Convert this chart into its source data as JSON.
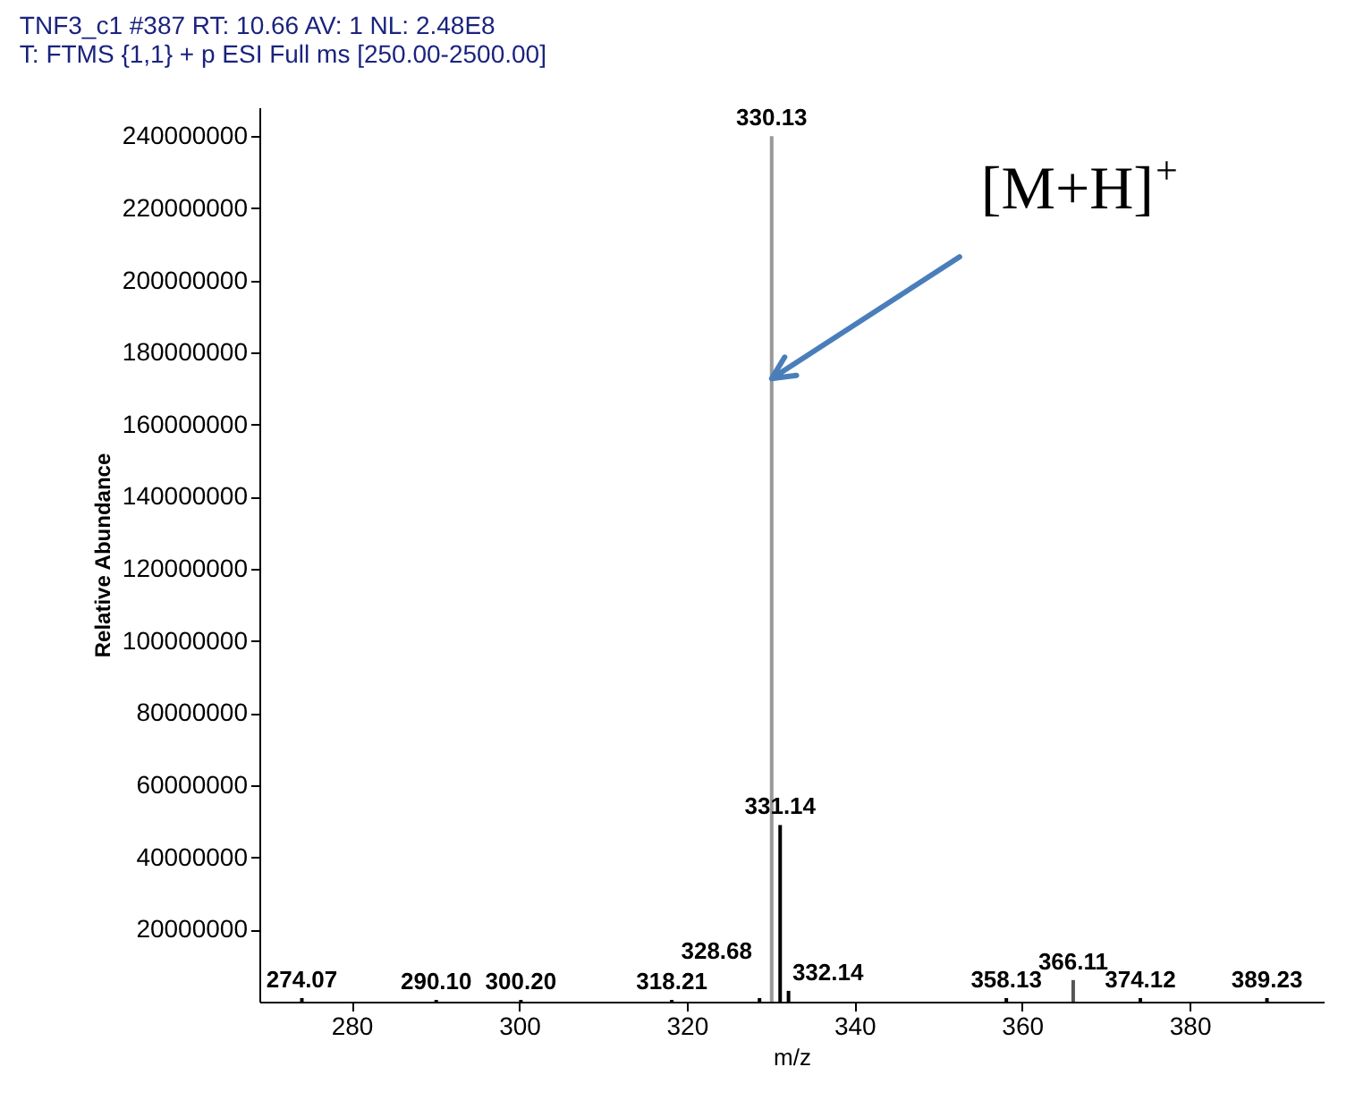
{
  "chart_data": {
    "type": "bar",
    "title": "TNF3_c1 #387   RT: 10.66   AV: 1   NL: 2.48E8",
    "subtitle": "T: FTMS {1,1}  + p ESI Full ms [250.00-2500.00]",
    "xlabel": "m/z",
    "ylabel": "Relative Abundance",
    "x": [
      274.07,
      290.1,
      300.2,
      318.21,
      328.68,
      330.13,
      331.14,
      332.14,
      358.13,
      366.11,
      374.12,
      389.23
    ],
    "values": [
      1000000,
      500000,
      500000,
      500000,
      1000000,
      240000000,
      49000000,
      3000000,
      1000000,
      6000000,
      1000000,
      1000000
    ],
    "colors": [
      "#000000",
      "#000000",
      "#000000",
      "#000000",
      "#000000",
      "#999999",
      "#000000",
      "#000000",
      "#000000",
      "#555555",
      "#000000",
      "#000000"
    ],
    "annotations": [
      {
        "text": "274.07",
        "x": 274.07,
        "y": 1000000
      },
      {
        "text": "290.10",
        "x": 290.1,
        "y": 500000
      },
      {
        "text": "300.20",
        "x": 300.2,
        "y": 500000
      },
      {
        "text": "318.21",
        "x": 318.21,
        "y": 500000
      },
      {
        "text": "328.68",
        "x": 328.68,
        "y": 1000000
      },
      {
        "text": "330.13",
        "x": 330.13,
        "y": 240000000
      },
      {
        "text": "331.14",
        "x": 331.14,
        "y": 49000000
      },
      {
        "text": "332.14",
        "x": 332.14,
        "y": 3000000
      },
      {
        "text": "358.13",
        "x": 358.13,
        "y": 1000000
      },
      {
        "text": "366.11",
        "x": 366.11,
        "y": 6000000
      },
      {
        "text": "374.12",
        "x": 374.12,
        "y": 1000000
      },
      {
        "text": "389.23",
        "x": 389.23,
        "y": 1000000
      },
      "[M+H]$^{+}$"
    ],
    "xlim": [
      269,
      396
    ],
    "xticks": [
      280,
      300,
      320,
      340,
      360,
      380
    ],
    "ylim": [
      0,
      248000000
    ],
    "yticks": [
      20000000,
      40000000,
      60000000,
      80000000,
      100000000,
      120000000,
      140000000,
      160000000,
      180000000,
      200000000,
      220000000,
      240000000
    ],
    "grid": false
  }
}
